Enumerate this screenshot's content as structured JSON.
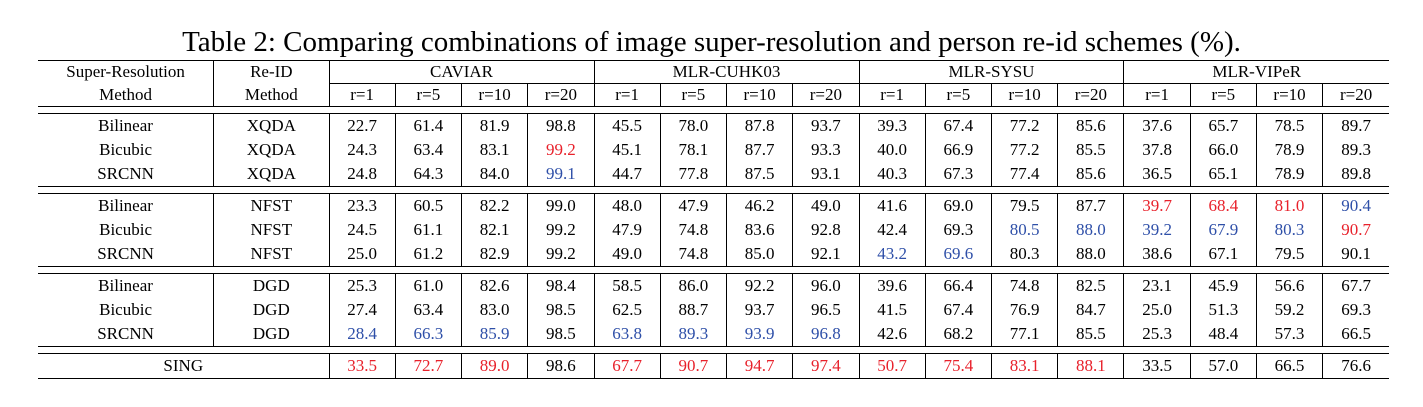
{
  "caption": "Table 2: Comparing combinations of image super-resolution and person re-id schemes (%).",
  "headers": {
    "sr_method": [
      "Super-Resolution",
      "Method"
    ],
    "reid_method": [
      "Re-ID",
      "Method"
    ],
    "datasets": [
      "CAVIAR",
      "MLR-CUHK03",
      "MLR-SYSU",
      "MLR-VIPeR"
    ],
    "ranks": [
      "r=1",
      "r=5",
      "r=10",
      "r=20"
    ]
  },
  "groups": [
    [
      {
        "sr": "Bilinear",
        "reid": "XQDA",
        "values": [
          "22.7",
          "61.4",
          "81.9",
          "98.8",
          "45.5",
          "78.0",
          "87.8",
          "93.7",
          "39.3",
          "67.4",
          "77.2",
          "85.6",
          "37.6",
          "65.7",
          "78.5",
          "89.7"
        ],
        "hl": [
          "",
          "",
          "",
          "",
          "",
          "",
          "",
          "",
          "",
          "",
          "",
          "",
          "",
          "",
          "",
          ""
        ]
      },
      {
        "sr": "Bicubic",
        "reid": "XQDA",
        "values": [
          "24.3",
          "63.4",
          "83.1",
          "99.2",
          "45.1",
          "78.1",
          "87.7",
          "93.3",
          "40.0",
          "66.9",
          "77.2",
          "85.5",
          "37.8",
          "66.0",
          "78.9",
          "89.3"
        ],
        "hl": [
          "",
          "",
          "",
          "red",
          "",
          "",
          "",
          "",
          "",
          "",
          "",
          "",
          "",
          "",
          "",
          ""
        ]
      },
      {
        "sr": "SRCNN",
        "reid": "XQDA",
        "values": [
          "24.8",
          "64.3",
          "84.0",
          "99.1",
          "44.7",
          "77.8",
          "87.5",
          "93.1",
          "40.3",
          "67.3",
          "77.4",
          "85.6",
          "36.5",
          "65.1",
          "78.9",
          "89.8"
        ],
        "hl": [
          "",
          "",
          "",
          "blue",
          "",
          "",
          "",
          "",
          "",
          "",
          "",
          "",
          "",
          "",
          "",
          ""
        ]
      }
    ],
    [
      {
        "sr": "Bilinear",
        "reid": "NFST",
        "values": [
          "23.3",
          "60.5",
          "82.2",
          "99.0",
          "48.0",
          "47.9",
          "46.2",
          "49.0",
          "41.6",
          "69.0",
          "79.5",
          "87.7",
          "39.7",
          "68.4",
          "81.0",
          "90.4"
        ],
        "hl": [
          "",
          "",
          "",
          "",
          "",
          "",
          "",
          "",
          "",
          "",
          "",
          "",
          "red",
          "red",
          "red",
          "blue"
        ]
      },
      {
        "sr": "Bicubic",
        "reid": "NFST",
        "values": [
          "24.5",
          "61.1",
          "82.1",
          "99.2",
          "47.9",
          "74.8",
          "83.6",
          "92.8",
          "42.4",
          "69.3",
          "80.5",
          "88.0",
          "39.2",
          "67.9",
          "80.3",
          "90.7"
        ],
        "hl": [
          "",
          "",
          "",
          "",
          "",
          "",
          "",
          "",
          "",
          "",
          "blue",
          "blue",
          "blue",
          "blue",
          "blue",
          "red"
        ]
      },
      {
        "sr": "SRCNN",
        "reid": "NFST",
        "values": [
          "25.0",
          "61.2",
          "82.9",
          "99.2",
          "49.0",
          "74.8",
          "85.0",
          "92.1",
          "43.2",
          "69.6",
          "80.3",
          "88.0",
          "38.6",
          "67.1",
          "79.5",
          "90.1"
        ],
        "hl": [
          "",
          "",
          "",
          "",
          "",
          "",
          "",
          "",
          "blue",
          "blue",
          "",
          "",
          "",
          "",
          "",
          ""
        ]
      }
    ],
    [
      {
        "sr": "Bilinear",
        "reid": "DGD",
        "values": [
          "25.3",
          "61.0",
          "82.6",
          "98.4",
          "58.5",
          "86.0",
          "92.2",
          "96.0",
          "39.6",
          "66.4",
          "74.8",
          "82.5",
          "23.1",
          "45.9",
          "56.6",
          "67.7"
        ],
        "hl": [
          "",
          "",
          "",
          "",
          "",
          "",
          "",
          "",
          "",
          "",
          "",
          "",
          "",
          "",
          "",
          ""
        ]
      },
      {
        "sr": "Bicubic",
        "reid": "DGD",
        "values": [
          "27.4",
          "63.4",
          "83.0",
          "98.5",
          "62.5",
          "88.7",
          "93.7",
          "96.5",
          "41.5",
          "67.4",
          "76.9",
          "84.7",
          "25.0",
          "51.3",
          "59.2",
          "69.3"
        ],
        "hl": [
          "",
          "",
          "",
          "",
          "",
          "",
          "",
          "",
          "",
          "",
          "",
          "",
          "",
          "",
          "",
          ""
        ]
      },
      {
        "sr": "SRCNN",
        "reid": "DGD",
        "values": [
          "28.4",
          "66.3",
          "85.9",
          "98.5",
          "63.8",
          "89.3",
          "93.9",
          "96.8",
          "42.6",
          "68.2",
          "77.1",
          "85.5",
          "25.3",
          "48.4",
          "57.3",
          "66.5"
        ],
        "hl": [
          "blue",
          "blue",
          "blue",
          "",
          "blue",
          "blue",
          "blue",
          "blue",
          "",
          "",
          "",
          "",
          "",
          "",
          "",
          ""
        ]
      }
    ]
  ],
  "sing": {
    "label": "SING",
    "values": [
      "33.5",
      "72.7",
      "89.0",
      "98.6",
      "67.7",
      "90.7",
      "94.7",
      "97.4",
      "50.7",
      "75.4",
      "83.1",
      "88.1",
      "33.5",
      "57.0",
      "66.5",
      "76.6"
    ],
    "hl": [
      "red",
      "red",
      "red",
      "",
      "red",
      "red",
      "red",
      "red",
      "red",
      "red",
      "red",
      "red",
      "",
      "",
      "",
      ""
    ]
  }
}
